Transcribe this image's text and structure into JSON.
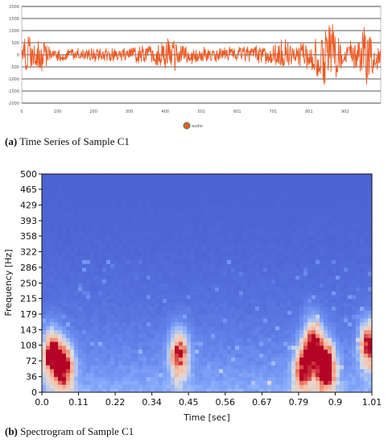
{
  "captions": {
    "a_label": "(a)",
    "a_text": "Time Series of Sample C1",
    "b_label": "(b)",
    "b_text": "Spectrogram of Sample C1"
  },
  "chart_data": [
    {
      "type": "line",
      "title": "",
      "xlabel": "",
      "ylabel": "",
      "xlim": [
        0,
        1001
      ],
      "ylim": [
        -2000,
        2000
      ],
      "x_ticks": [
        "0",
        "100",
        "200",
        "300",
        "400",
        "501",
        "601",
        "701",
        "801",
        "902"
      ],
      "y_ticks": [
        "2000",
        "1500",
        "1000",
        "500",
        "0",
        "-500",
        "-1000",
        "-1500",
        "-2000"
      ],
      "grid": "horizontal",
      "legend": {
        "placement": "bottom-center",
        "entries": [
          "audio"
        ]
      },
      "series": [
        {
          "name": "audio",
          "color": "#ee5a24",
          "envelope": {
            "x": [
              0,
              15,
              30,
              60,
              80,
              120,
              200,
              300,
              400,
              420,
              440,
              500,
              600,
              640,
              700,
              720,
              760,
              800,
              850,
              870,
              900,
              940,
              960,
              980,
              1001
            ],
            "amplitude": [
              250,
              1100,
              600,
              800,
              300,
              250,
              300,
              300,
              600,
              900,
              400,
              350,
              350,
              400,
              400,
              900,
              350,
              700,
              1500,
              1300,
              500,
              700,
              1700,
              900,
              500
            ]
          }
        }
      ]
    },
    {
      "type": "heatmap",
      "title": "",
      "xlabel": "Time [sec]",
      "ylabel": "Frequency [Hz]",
      "xlim": [
        0,
        1.01
      ],
      "ylim": [
        0,
        500
      ],
      "x_ticks": [
        "0.0",
        "0.11",
        "0.22",
        "0.34",
        "0.45",
        "0.56",
        "0.67",
        "0.79",
        "0.9",
        "1.01"
      ],
      "y_ticks": [
        "0",
        "36",
        "72",
        "108",
        "143",
        "179",
        "215",
        "250",
        "286",
        "322",
        "358",
        "393",
        "429",
        "465",
        "500"
      ],
      "colormap": "coolwarm",
      "hot_spots": [
        {
          "t": 0.03,
          "f": 90,
          "intensity": 0.8
        },
        {
          "t": 0.07,
          "f": 60,
          "intensity": 0.75
        },
        {
          "t": 0.42,
          "f": 90,
          "intensity": 0.75
        },
        {
          "t": 0.8,
          "f": 55,
          "intensity": 0.7
        },
        {
          "t": 0.87,
          "f": 60,
          "intensity": 1.0
        },
        {
          "t": 0.83,
          "f": 120,
          "intensity": 0.7
        },
        {
          "t": 1.0,
          "f": 110,
          "intensity": 0.8
        }
      ]
    }
  ]
}
